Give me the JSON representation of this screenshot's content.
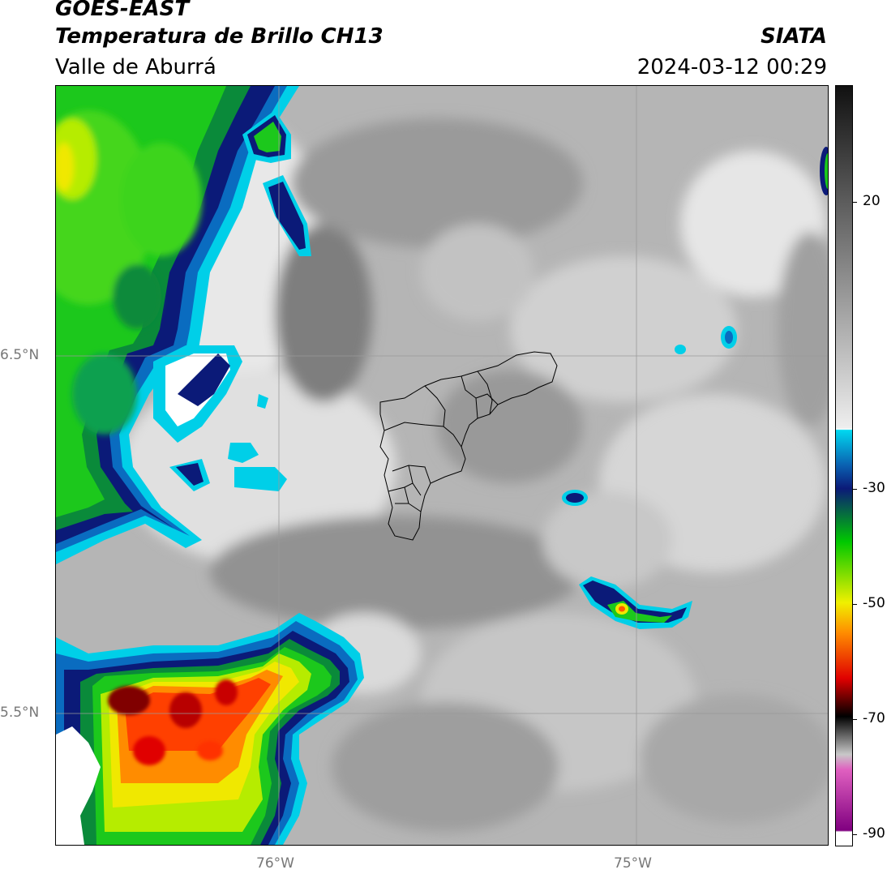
{
  "header": {
    "satellite": "GOES-EAST",
    "product": "Temperatura de Brillo CH13",
    "region": "Valle de Aburrá",
    "agency": "SIATA",
    "datetime": "2024-03-12 00:29"
  },
  "map": {
    "lat_labels": [
      "6.5°N",
      "5.5°N"
    ],
    "lon_labels": [
      "76°W",
      "75°W"
    ]
  },
  "colorbar": {
    "tick_labels": [
      "20",
      "-30",
      "-50",
      "-70",
      "-90"
    ],
    "colors": {
      "dark_top": "#111111",
      "warm_gray": "#8c8c8c",
      "light_gray": "#eeeeee",
      "cyan": "#00d8f0",
      "blue": "#0a5fb0",
      "navy": "#0b1a78",
      "green": "#00c800",
      "yellow": "#f0f000",
      "orange": "#ff8c00",
      "red": "#e00000",
      "black": "#000000",
      "pink": "#e060c0",
      "purple": "#800080"
    }
  }
}
